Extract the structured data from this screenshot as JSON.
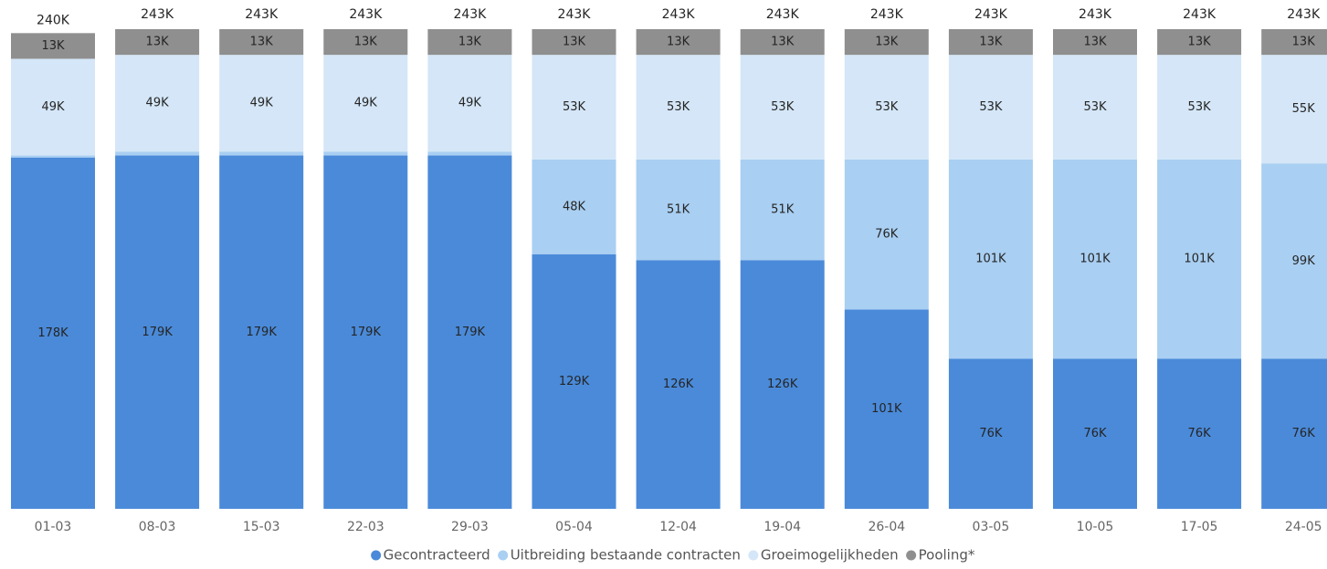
{
  "chart_data": {
    "type": "stacked-bar",
    "categories": [
      "01-03",
      "08-03",
      "15-03",
      "22-03",
      "29-03",
      "05-04",
      "12-04",
      "19-04",
      "26-04",
      "03-05",
      "10-05",
      "17-05",
      "24-05"
    ],
    "series": [
      {
        "name": "Gecontracteerd",
        "color": "#4a8ad9",
        "values": [
          178000,
          179000,
          179000,
          179000,
          179000,
          129000,
          126000,
          126000,
          101000,
          76000,
          76000,
          76000,
          76000
        ],
        "value_labels": [
          "178K",
          "179K",
          "179K",
          "179K",
          "179K",
          "129K",
          "126K",
          "126K",
          "101K",
          "76K",
          "76K",
          "76K",
          "76K"
        ]
      },
      {
        "name": "Uitbreiding bestaande contracten",
        "color": "#a9cff2",
        "values": [
          1000,
          2000,
          2000,
          2000,
          2000,
          48000,
          51000,
          51000,
          76000,
          101000,
          101000,
          101000,
          99000
        ],
        "value_labels": [
          null,
          null,
          null,
          null,
          null,
          "48K",
          "51K",
          "51K",
          "76K",
          "101K",
          "101K",
          "101K",
          "99K"
        ]
      },
      {
        "name": "Groeimogelijkheden",
        "color": "#d4e6f7",
        "values": [
          49000,
          49000,
          49000,
          49000,
          49000,
          53000,
          53000,
          53000,
          53000,
          53000,
          53000,
          53000,
          55000
        ],
        "value_labels": [
          "49K",
          "49K",
          "49K",
          "49K",
          "49K",
          "53K",
          "53K",
          "53K",
          "53K",
          "53K",
          "53K",
          "53K",
          "55K"
        ]
      },
      {
        "name": "Pooling*",
        "color": "#8f8f8f",
        "values": [
          13000,
          13000,
          13000,
          13000,
          13000,
          13000,
          13000,
          13000,
          13000,
          13000,
          13000,
          13000,
          13000
        ],
        "value_labels": [
          "13K",
          "13K",
          "13K",
          "13K",
          "13K",
          "13K",
          "13K",
          "13K",
          "13K",
          "13K",
          "13K",
          "13K",
          "13K"
        ]
      }
    ],
    "totals": [
      240000,
      243000,
      243000,
      243000,
      243000,
      243000,
      243000,
      243000,
      243000,
      243000,
      243000,
      243000,
      243000
    ],
    "total_labels": [
      "240K",
      "243K",
      "243K",
      "243K",
      "243K",
      "243K",
      "243K",
      "243K",
      "243K",
      "243K",
      "243K",
      "243K",
      "243K"
    ],
    "legend": "bottom"
  }
}
